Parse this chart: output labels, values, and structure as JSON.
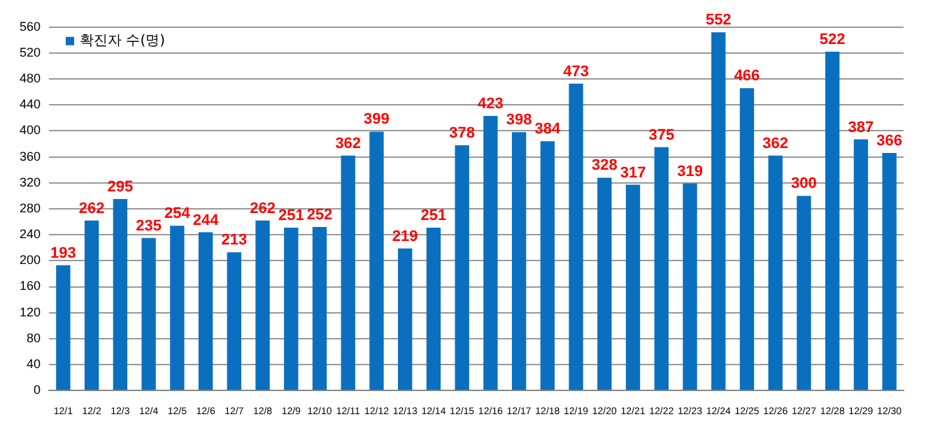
{
  "chart_data": {
    "type": "bar",
    "categories": [
      "12/1",
      "12/2",
      "12/3",
      "12/4",
      "12/5",
      "12/6",
      "12/7",
      "12/8",
      "12/9",
      "12/10",
      "12/11",
      "12/12",
      "12/13",
      "12/14",
      "12/15",
      "12/16",
      "12/17",
      "12/18",
      "12/19",
      "12/20",
      "12/21",
      "12/22",
      "12/23",
      "12/24",
      "12/25",
      "12/26",
      "12/27",
      "12/28",
      "12/29",
      "12/30"
    ],
    "series": [
      {
        "name": "확진자 수(명)",
        "color": "#0b6fc0",
        "values": [
          193,
          262,
          295,
          235,
          254,
          244,
          213,
          262,
          251,
          252,
          362,
          399,
          219,
          251,
          378,
          423,
          398,
          384,
          473,
          328,
          317,
          375,
          319,
          552,
          466,
          362,
          300,
          522,
          387,
          366
        ]
      }
    ],
    "ylim": [
      0,
      560
    ],
    "yticks": [
      0,
      40,
      80,
      120,
      160,
      200,
      240,
      280,
      320,
      360,
      400,
      440,
      480,
      520,
      560
    ],
    "grid": "y",
    "legend": "top left",
    "data_labels": true
  }
}
